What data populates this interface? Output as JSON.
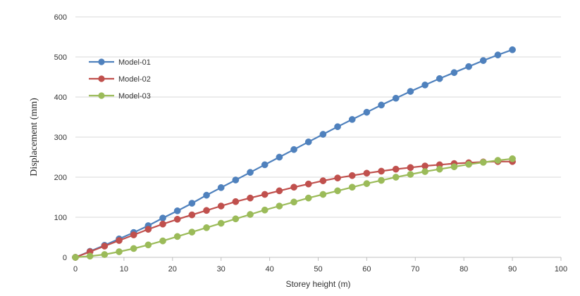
{
  "chart_data": {
    "type": "line",
    "xlabel": "Storey height (m)",
    "ylabel": "Displacement (mm)",
    "xlim": [
      0,
      100
    ],
    "ylim": [
      0,
      600
    ],
    "xticks": [
      0,
      10,
      20,
      30,
      40,
      50,
      60,
      70,
      80,
      90,
      100
    ],
    "yticks": [
      0,
      100,
      200,
      300,
      400,
      500,
      600
    ],
    "grid": "horizontal",
    "legend_position": "top-left",
    "series": [
      {
        "name": "Model-01",
        "color": "#4f81bd",
        "x": [
          0,
          3,
          6,
          9,
          12,
          15,
          18,
          21,
          24,
          27,
          30,
          33,
          36,
          39,
          42,
          45,
          48,
          51,
          54,
          57,
          60,
          63,
          66,
          69,
          72,
          75,
          78,
          81,
          84,
          87,
          90
        ],
        "y": [
          0,
          15,
          30,
          46,
          62,
          79,
          98,
          116,
          135,
          155,
          174,
          193,
          212,
          231,
          250,
          269,
          288,
          307,
          326,
          344,
          362,
          380,
          397,
          414,
          430,
          446,
          461,
          476,
          491,
          505,
          518
        ]
      },
      {
        "name": "Model-02",
        "color": "#c0504d",
        "x": [
          0,
          3,
          6,
          9,
          12,
          15,
          18,
          21,
          24,
          27,
          30,
          33,
          36,
          39,
          42,
          45,
          48,
          51,
          54,
          57,
          60,
          63,
          66,
          69,
          72,
          75,
          78,
          81,
          84,
          87,
          90
        ],
        "y": [
          0,
          14,
          28,
          42,
          56,
          70,
          83,
          95,
          106,
          117,
          128,
          139,
          148,
          157,
          166,
          175,
          183,
          191,
          198,
          204,
          210,
          215,
          220,
          224,
          228,
          231,
          234,
          236,
          238,
          239,
          239
        ]
      },
      {
        "name": "Model-03",
        "color": "#9bbb59",
        "x": [
          0,
          3,
          6,
          9,
          12,
          15,
          18,
          21,
          24,
          27,
          30,
          33,
          36,
          39,
          42,
          45,
          48,
          51,
          54,
          57,
          60,
          63,
          66,
          69,
          72,
          75,
          78,
          81,
          84,
          87,
          90
        ],
        "y": [
          0,
          3,
          7,
          14,
          22,
          31,
          41,
          52,
          63,
          74,
          85,
          96,
          107,
          118,
          128,
          138,
          148,
          157,
          166,
          175,
          184,
          192,
          200,
          207,
          214,
          220,
          226,
          232,
          237,
          242,
          246
        ]
      }
    ]
  }
}
